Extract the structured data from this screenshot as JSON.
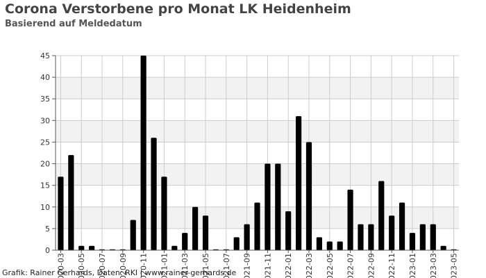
{
  "title": "Corona Verstorbene pro Monat LK Heidenheim",
  "subtitle": "Basierend auf Meldedatum",
  "credit": "Grafik: Rainer Gerhards, Daten: RKI | www.rainer-gerhards.de",
  "chart_data": {
    "type": "bar",
    "title": "Corona Verstorbene pro Monat LK Heidenheim",
    "subtitle": "Basierend auf Meldedatum",
    "xlabel": "",
    "ylabel": "",
    "ylim": [
      0,
      45
    ],
    "yticks": [
      0,
      5,
      10,
      15,
      20,
      25,
      30,
      35,
      40,
      45
    ],
    "grid": true,
    "bar_color": "#000000",
    "band_color": "#f2f2f2",
    "categories": [
      "2020-03",
      "2020-04",
      "2020-05",
      "2020-06",
      "2020-07",
      "2020-08",
      "2020-09",
      "2020-10",
      "2020-11",
      "2020-12",
      "2021-01",
      "2021-02",
      "2021-03",
      "2021-04",
      "2021-05",
      "2021-06",
      "2021-07",
      "2021-08",
      "2021-09",
      "2021-10",
      "2021-11",
      "2021-12",
      "2022-01",
      "2022-02",
      "2022-03",
      "2022-04",
      "2022-05",
      "2022-06",
      "2022-07",
      "2022-08",
      "2022-09",
      "2022-10",
      "2022-11",
      "2022-12",
      "2023-01",
      "2023-02",
      "2023-03",
      "2023-04",
      "2023-05"
    ],
    "tick_labels": [
      "2020-03",
      "2020-05",
      "2020-07",
      "2020-09",
      "2020-11",
      "2021-01",
      "2021-03",
      "2021-05",
      "2021-07",
      "2021-09",
      "2021-11",
      "2022-01",
      "2022-03",
      "2022-05",
      "2022-07",
      "2022-09",
      "2022-11",
      "2023-01",
      "2023-03",
      "2023-05"
    ],
    "values": [
      17,
      22,
      1,
      1,
      0,
      0,
      0,
      7,
      45,
      26,
      17,
      1,
      4,
      10,
      8,
      0,
      0,
      3,
      6,
      11,
      20,
      20,
      9,
      31,
      25,
      3,
      2,
      2,
      14,
      6,
      6,
      16,
      8,
      11,
      4,
      6,
      6,
      1,
      0
    ]
  }
}
